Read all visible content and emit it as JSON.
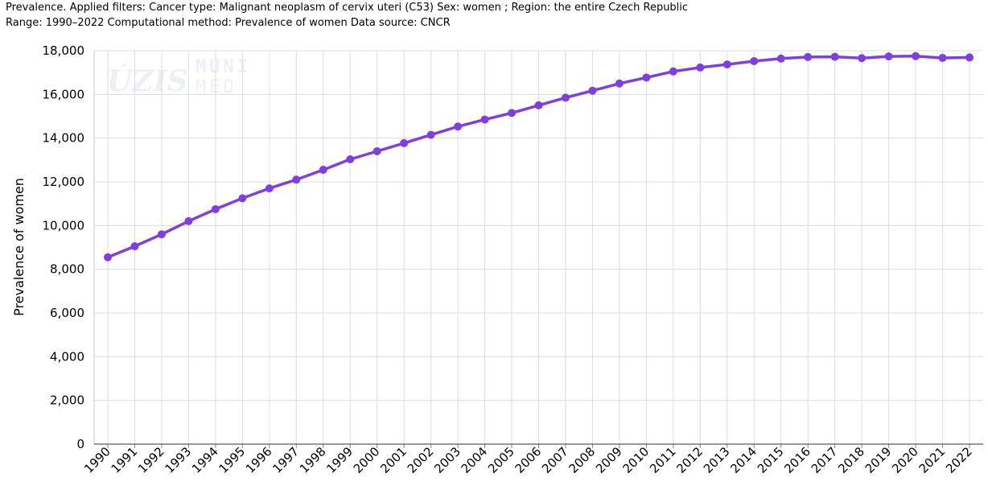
{
  "header": {
    "line1": "Prevalence. Applied filters: Cancer type: Malignant neoplasm of cervix uteri (C53) Sex: women ; Region: the entire Czech Republic",
    "line2": "Range: 1990–2022 Computational method: Prevalence of women Data source: CNCR"
  },
  "watermark": {
    "left": "ÚZIS",
    "right_top": "MUNI",
    "right_bottom": "MED"
  },
  "chart_data": {
    "type": "line",
    "title": "",
    "xlabel": "",
    "ylabel": "Prevalence of women",
    "ylim": [
      0,
      18000
    ],
    "yticks": [
      0,
      2000,
      4000,
      6000,
      8000,
      10000,
      12000,
      14000,
      16000,
      18000
    ],
    "ytick_labels": [
      "0",
      "2,000",
      "4,000",
      "6,000",
      "8,000",
      "10,000",
      "12,000",
      "14,000",
      "16,000",
      "18,000"
    ],
    "grid": true,
    "line_color": "#7f3fe0",
    "x": [
      "1990",
      "1991",
      "1992",
      "1993",
      "1994",
      "1995",
      "1996",
      "1997",
      "1998",
      "1999",
      "2000",
      "2001",
      "2002",
      "2003",
      "2004",
      "2005",
      "2006",
      "2007",
      "2008",
      "2009",
      "2010",
      "2011",
      "2012",
      "2013",
      "2014",
      "2015",
      "2016",
      "2017",
      "2018",
      "2019",
      "2020",
      "2021",
      "2022"
    ],
    "series": [
      {
        "values": [
          8550,
          9050,
          9600,
          10200,
          10750,
          11250,
          11700,
          12100,
          12550,
          13030,
          13400,
          13770,
          14150,
          14530,
          14850,
          15150,
          15500,
          15850,
          16170,
          16500,
          16770,
          17050,
          17230,
          17370,
          17520,
          17640,
          17710,
          17720,
          17660,
          17740,
          17750,
          17670,
          17690
        ]
      }
    ]
  }
}
